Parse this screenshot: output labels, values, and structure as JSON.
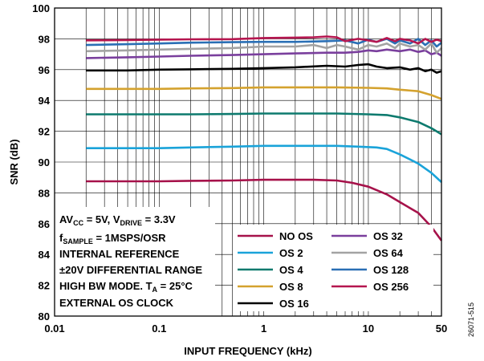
{
  "chart_data": {
    "type": "line",
    "xlabel": "INPUT FREQUENCY (kHz)",
    "ylabel": "SNR (dB)",
    "x_scale": "log",
    "xlim": [
      0.01,
      50
    ],
    "ylim": [
      80,
      100
    ],
    "x_ticks": [
      {
        "value": 0.01,
        "label": "0.01"
      },
      {
        "value": 0.1,
        "label": "0.1"
      },
      {
        "value": 1,
        "label": "1"
      },
      {
        "value": 10,
        "label": "10"
      },
      {
        "value": 50,
        "label": "50"
      }
    ],
    "y_ticks": [
      {
        "value": 80,
        "label": "80"
      },
      {
        "value": 82,
        "label": "82"
      },
      {
        "value": 84,
        "label": "84"
      },
      {
        "value": 86,
        "label": "86"
      },
      {
        "value": 88,
        "label": "88"
      },
      {
        "value": 90,
        "label": "90"
      },
      {
        "value": 92,
        "label": "92"
      },
      {
        "value": 94,
        "label": "94"
      },
      {
        "value": 96,
        "label": "96"
      },
      {
        "value": 98,
        "label": "98"
      },
      {
        "value": 100,
        "label": "100"
      }
    ],
    "grid": true,
    "legend_position": "bottom-center",
    "series": [
      {
        "name": "NO OS",
        "color": "#a6124a",
        "points": [
          [
            0.02,
            88.75
          ],
          [
            0.05,
            88.75
          ],
          [
            0.1,
            88.75
          ],
          [
            0.2,
            88.78
          ],
          [
            0.5,
            88.8
          ],
          [
            1,
            88.85
          ],
          [
            2,
            88.85
          ],
          [
            3,
            88.85
          ],
          [
            5,
            88.8
          ],
          [
            7,
            88.65
          ],
          [
            10,
            88.4
          ],
          [
            15,
            87.9
          ],
          [
            20,
            87.4
          ],
          [
            30,
            86.7
          ],
          [
            40,
            85.8
          ],
          [
            50,
            84.9
          ]
        ]
      },
      {
        "name": "OS 2",
        "color": "#1aa3d9",
        "points": [
          [
            0.02,
            90.9
          ],
          [
            0.05,
            90.9
          ],
          [
            0.1,
            90.9
          ],
          [
            0.2,
            90.95
          ],
          [
            0.5,
            91.0
          ],
          [
            1,
            91.05
          ],
          [
            2,
            91.05
          ],
          [
            5,
            91.05
          ],
          [
            8,
            91.0
          ],
          [
            12,
            90.95
          ],
          [
            15,
            90.85
          ],
          [
            20,
            90.5
          ],
          [
            30,
            89.9
          ],
          [
            40,
            89.3
          ],
          [
            50,
            88.7
          ]
        ]
      },
      {
        "name": "OS 4",
        "color": "#0d7a6e",
        "points": [
          [
            0.02,
            93.1
          ],
          [
            0.05,
            93.1
          ],
          [
            0.1,
            93.1
          ],
          [
            0.2,
            93.1
          ],
          [
            0.5,
            93.12
          ],
          [
            1,
            93.15
          ],
          [
            2,
            93.15
          ],
          [
            5,
            93.15
          ],
          [
            10,
            93.1
          ],
          [
            15,
            93.05
          ],
          [
            20,
            92.9
          ],
          [
            30,
            92.6
          ],
          [
            40,
            92.2
          ],
          [
            50,
            91.8
          ]
        ]
      },
      {
        "name": "OS 8",
        "color": "#d4a22e",
        "points": [
          [
            0.02,
            94.75
          ],
          [
            0.05,
            94.75
          ],
          [
            0.1,
            94.75
          ],
          [
            0.2,
            94.78
          ],
          [
            0.5,
            94.8
          ],
          [
            1,
            94.85
          ],
          [
            2,
            94.85
          ],
          [
            5,
            94.85
          ],
          [
            10,
            94.82
          ],
          [
            15,
            94.78
          ],
          [
            20,
            94.7
          ],
          [
            30,
            94.6
          ],
          [
            40,
            94.35
          ],
          [
            50,
            94.1
          ]
        ]
      },
      {
        "name": "OS 16",
        "color": "#000000",
        "points": [
          [
            0.02,
            95.95
          ],
          [
            0.05,
            95.95
          ],
          [
            0.1,
            96.0
          ],
          [
            0.2,
            96.02
          ],
          [
            0.5,
            96.05
          ],
          [
            1,
            96.1
          ],
          [
            2,
            96.15
          ],
          [
            4,
            96.25
          ],
          [
            6,
            96.2
          ],
          [
            8,
            96.3
          ],
          [
            10,
            96.35
          ],
          [
            12,
            96.2
          ],
          [
            15,
            96.1
          ],
          [
            20,
            96.15
          ],
          [
            25,
            96.0
          ],
          [
            30,
            96.1
          ],
          [
            35,
            95.9
          ],
          [
            40,
            96.0
          ],
          [
            45,
            95.8
          ],
          [
            50,
            95.9
          ]
        ]
      },
      {
        "name": "OS 32",
        "color": "#7a3f9d",
        "points": [
          [
            0.02,
            96.75
          ],
          [
            0.05,
            96.8
          ],
          [
            0.1,
            96.85
          ],
          [
            0.2,
            96.9
          ],
          [
            0.5,
            96.95
          ],
          [
            1,
            97.0
          ],
          [
            2,
            97.05
          ],
          [
            4,
            97.1
          ],
          [
            6,
            97.1
          ],
          [
            8,
            97.15
          ],
          [
            10,
            97.25
          ],
          [
            12,
            97.2
          ],
          [
            15,
            97.3
          ],
          [
            20,
            97.2
          ],
          [
            25,
            97.3
          ],
          [
            30,
            97.15
          ],
          [
            35,
            97.25
          ],
          [
            40,
            97.0
          ],
          [
            45,
            97.1
          ],
          [
            50,
            96.9
          ]
        ]
      },
      {
        "name": "OS 64",
        "color": "#a3a3a3",
        "points": [
          [
            0.02,
            97.2
          ],
          [
            0.05,
            97.25
          ],
          [
            0.1,
            97.3
          ],
          [
            0.2,
            97.35
          ],
          [
            0.5,
            97.4
          ],
          [
            1,
            97.5
          ],
          [
            2,
            97.5
          ],
          [
            3,
            97.6
          ],
          [
            4,
            97.4
          ],
          [
            5,
            97.6
          ],
          [
            6,
            97.5
          ],
          [
            8,
            97.3
          ],
          [
            10,
            97.6
          ],
          [
            12,
            97.5
          ],
          [
            15,
            97.7
          ],
          [
            18,
            97.4
          ],
          [
            20,
            97.7
          ],
          [
            25,
            97.5
          ],
          [
            30,
            97.6
          ],
          [
            35,
            97.3
          ],
          [
            40,
            97.7
          ],
          [
            45,
            97.1
          ],
          [
            50,
            97.4
          ]
        ]
      },
      {
        "name": "OS 128",
        "color": "#2a6fb5",
        "points": [
          [
            0.02,
            97.6
          ],
          [
            0.05,
            97.65
          ],
          [
            0.1,
            97.7
          ],
          [
            0.2,
            97.75
          ],
          [
            0.5,
            97.78
          ],
          [
            1,
            97.8
          ],
          [
            2,
            97.8
          ],
          [
            4,
            97.85
          ],
          [
            6,
            97.9
          ],
          [
            8,
            97.7
          ],
          [
            10,
            97.95
          ],
          [
            12,
            97.8
          ],
          [
            15,
            98.0
          ],
          [
            18,
            97.7
          ],
          [
            20,
            97.9
          ],
          [
            25,
            97.7
          ],
          [
            30,
            98.0
          ],
          [
            35,
            97.6
          ],
          [
            40,
            97.9
          ],
          [
            45,
            97.5
          ],
          [
            50,
            97.75
          ]
        ]
      },
      {
        "name": "OS 256",
        "color": "#b5164f",
        "points": [
          [
            0.02,
            97.9
          ],
          [
            0.05,
            97.92
          ],
          [
            0.1,
            97.95
          ],
          [
            0.2,
            97.97
          ],
          [
            0.5,
            97.98
          ],
          [
            1,
            98.05
          ],
          [
            2,
            98.08
          ],
          [
            3,
            98.1
          ],
          [
            4,
            98.15
          ],
          [
            5,
            98.1
          ],
          [
            6,
            97.85
          ],
          [
            8,
            98.0
          ],
          [
            10,
            97.9
          ],
          [
            12,
            97.8
          ],
          [
            15,
            98.05
          ],
          [
            18,
            97.85
          ],
          [
            20,
            98.0
          ],
          [
            25,
            97.9
          ],
          [
            30,
            97.7
          ],
          [
            35,
            98.0
          ],
          [
            40,
            97.8
          ],
          [
            45,
            97.95
          ],
          [
            50,
            97.85
          ]
        ]
      }
    ]
  },
  "notes": {
    "line1_pre": "AV",
    "line1_sub": "CC",
    "line1_mid": " = 5V, V",
    "line1_sub2": "DRIVE",
    "line1_post": " = 3.3V",
    "line2_pre": "f",
    "line2_sub": "SAMPLE",
    "line2_post": " = 1MSPS/OSR",
    "line3": "INTERNAL REFERENCE",
    "line4": "±20V DIFFERENTIAL RANGE",
    "line5_pre": "HIGH BW MODE. T",
    "line5_sub": "A",
    "line5_post": " = 25°C",
    "line6": "EXTERNAL OS CLOCK"
  },
  "figure_id": "26071-515"
}
